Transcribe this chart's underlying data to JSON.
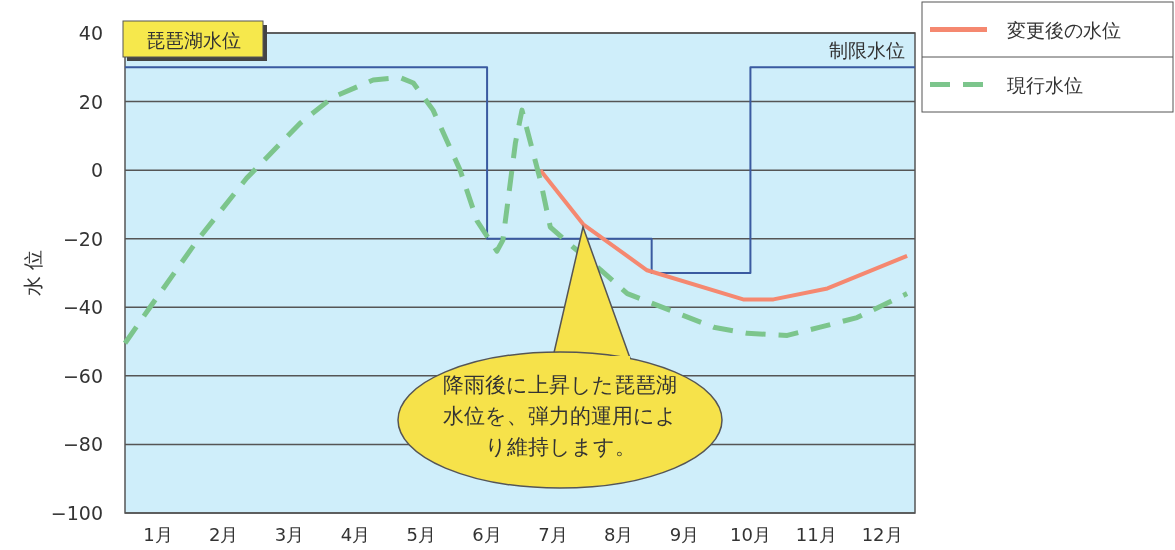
{
  "chart_data": {
    "type": "line",
    "title": "琵琶湖水位",
    "ylabel": "水 位",
    "xlim": [
      0,
      12
    ],
    "xticks": [
      {
        "value": 0.5,
        "label": "1月"
      },
      {
        "value": 1.5,
        "label": "2月"
      },
      {
        "value": 2.5,
        "label": "3月"
      },
      {
        "value": 3.5,
        "label": "4月"
      },
      {
        "value": 4.5,
        "label": "5月"
      },
      {
        "value": 5.5,
        "label": "6月"
      },
      {
        "value": 6.5,
        "label": "7月"
      },
      {
        "value": 7.5,
        "label": "8月"
      },
      {
        "value": 8.5,
        "label": "9月"
      },
      {
        "value": 9.5,
        "label": "10月"
      },
      {
        "value": 10.5,
        "label": "11月"
      },
      {
        "value": 11.5,
        "label": "12月"
      }
    ],
    "ylim": [
      -100,
      40
    ],
    "yticks": [
      -100,
      -80,
      -60,
      -40,
      -20,
      0,
      20,
      40
    ],
    "grid": "y",
    "legend": "top right",
    "series": [
      {
        "name": "制限水位",
        "type": "step",
        "color": "#3a5aa0",
        "line_style": "solid",
        "x": [
          0,
          5.5,
          8,
          9.5,
          12
        ],
        "values": [
          30,
          -20,
          -30,
          30,
          30
        ]
      },
      {
        "name": "変更後の水位",
        "color": "#f58870",
        "line_style": "solid",
        "x": [
          6.31,
          6.96,
          7.93,
          9.39,
          9.85,
          10.67,
          11.88
        ],
        "values": [
          0,
          -15.8,
          -29.2,
          -37.7,
          -37.7,
          -34.5,
          -25
        ]
      },
      {
        "name": "現行水位",
        "color": "#7cc58c",
        "line_style": "dashed",
        "x": [
          0,
          0.38,
          1.09,
          1.85,
          2.66,
          3.16,
          3.77,
          4.18,
          4.38,
          4.68,
          5.09,
          5.35,
          5.65,
          5.74,
          5.93,
          6.03,
          6.31,
          6.46,
          6.81,
          7.22,
          7.63,
          8.94,
          9.45,
          10.06,
          10.56,
          11.12,
          11.88
        ],
        "values": [
          -50.5,
          -40,
          -20.7,
          -2.3,
          13.7,
          21.3,
          26.3,
          27,
          25.4,
          17.5,
          0,
          -14.9,
          -23.6,
          -20.4,
          7.9,
          17.5,
          -3,
          -16.6,
          -22.5,
          -29,
          -36,
          -45.8,
          -47.6,
          -48.2,
          -45.8,
          -43,
          -36
        ]
      }
    ],
    "annotations": [
      "降雨後に上昇した琵琶湖水位を、弾力的運用により維持します。"
    ]
  }
}
